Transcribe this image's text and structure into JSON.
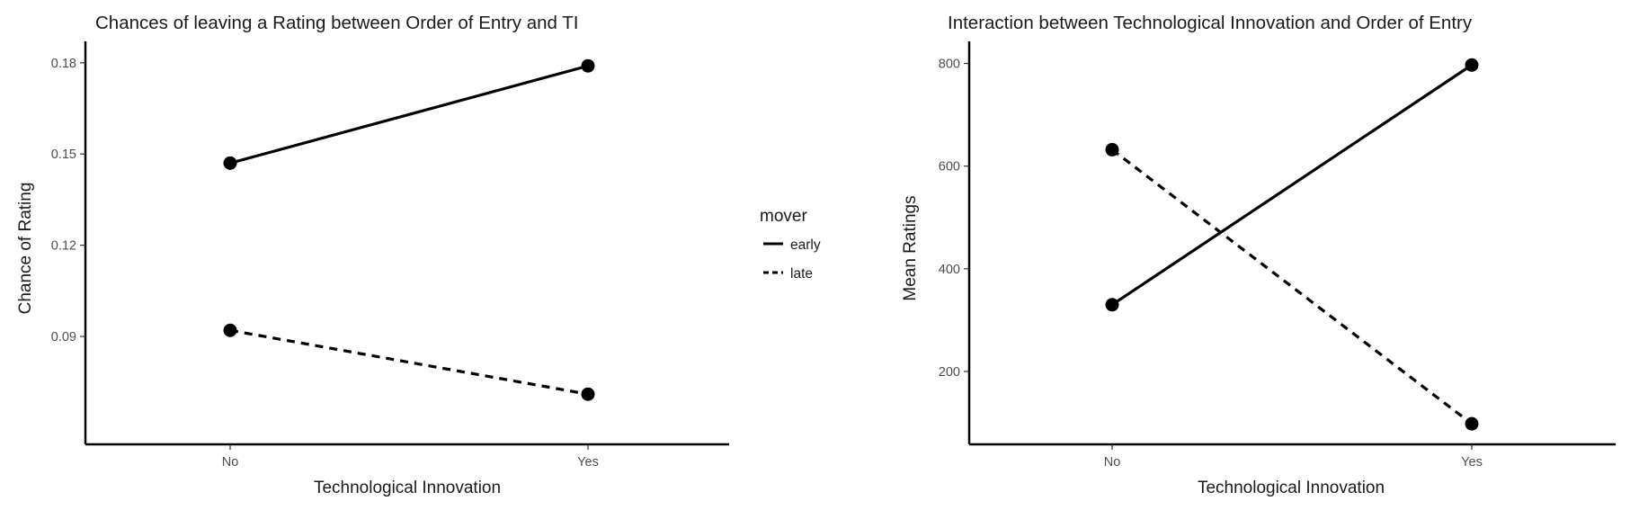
{
  "chart_data": [
    {
      "type": "line",
      "title": "Chances of leaving a Rating between Order of Entry and TI",
      "xlabel": "Technological Innovation",
      "ylabel": "Chance of Rating",
      "categories": [
        "No",
        "Yes"
      ],
      "ylim": [
        0.0545,
        0.1835
      ],
      "yticks": [
        0.09,
        0.12,
        0.15,
        0.18
      ],
      "ytick_labels": [
        "0.09",
        "0.12",
        "0.15",
        "0.18"
      ],
      "grid": false,
      "series": [
        {
          "name": "early",
          "values": [
            0.147,
            0.179
          ],
          "linetype": "solid"
        },
        {
          "name": "late",
          "values": [
            0.092,
            0.071
          ],
          "linetype": "dashed"
        }
      ]
    },
    {
      "type": "line",
      "title": "Interaction between Technological Innovation and Order of Entry",
      "xlabel": "Technological Innovation",
      "ylabel": "Mean Ratings",
      "categories": [
        "No",
        "Yes"
      ],
      "ylim": [
        58,
        822
      ],
      "yticks": [
        200,
        400,
        600,
        800
      ],
      "ytick_labels": [
        "200",
        "400",
        "600",
        "800"
      ],
      "grid": false,
      "series": [
        {
          "name": "early",
          "values": [
            330,
            797
          ],
          "linetype": "solid"
        },
        {
          "name": "late",
          "values": [
            632,
            98
          ],
          "linetype": "dashed"
        }
      ]
    }
  ],
  "legend": {
    "title": "mover",
    "placement": "between panels, right of left panel",
    "entries": [
      {
        "label": "early",
        "linetype": "solid"
      },
      {
        "label": "late",
        "linetype": "dashed"
      }
    ]
  },
  "colors": {
    "line": "#000000",
    "point": "#000000",
    "axis": "#000000",
    "tick_text": "#4d4d4d",
    "text": "#1a1a1a"
  }
}
